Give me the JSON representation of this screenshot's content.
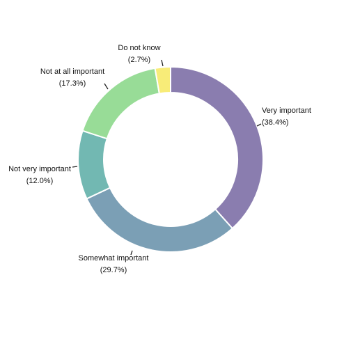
{
  "chart_data": {
    "type": "pie",
    "variant": "donut",
    "start": "top",
    "direction": "clockwise",
    "slices": [
      {
        "label": "Very important",
        "value": 38.4,
        "pct_label": "(38.4%)",
        "color": "#8a7daf"
      },
      {
        "label": "Somewhat important",
        "value": 29.7,
        "pct_label": "(29.7%)",
        "color": "#7b9fb5"
      },
      {
        "label": "Not very important",
        "value": 12.0,
        "pct_label": "(12.0%)",
        "color": "#72b8b2"
      },
      {
        "label": "Not at all important",
        "value": 17.3,
        "pct_label": "(17.3%)",
        "color": "#98dc97"
      },
      {
        "label": "Do not know",
        "value": 2.7,
        "pct_label": "(2.7%)",
        "color": "#f8ec78"
      }
    ]
  }
}
